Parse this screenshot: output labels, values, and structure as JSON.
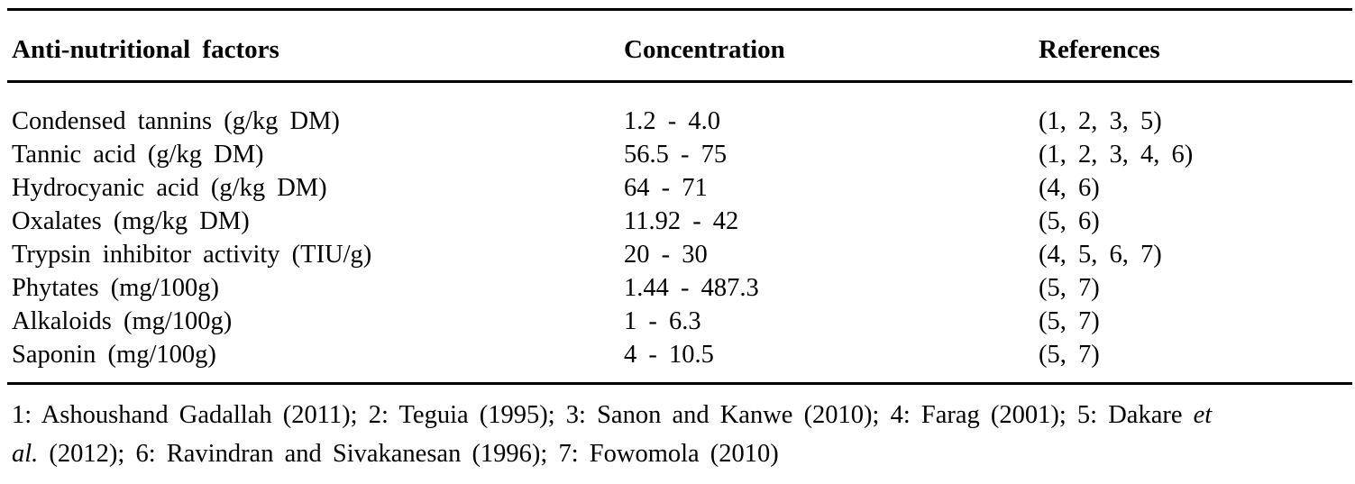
{
  "table": {
    "columns": [
      "Anti-nutritional factors",
      "Concentration",
      "References"
    ],
    "rows": [
      {
        "factor": "Condensed tannins (g/kg DM)",
        "concentration": "1.2 - 4.0",
        "references": "(1, 2, 3, 5)"
      },
      {
        "factor": "Tannic acid (g/kg DM)",
        "concentration": "56.5 - 75",
        "references": "(1, 2, 3, 4, 6)"
      },
      {
        "factor": "Hydrocyanic acid (g/kg DM)",
        "concentration": "64 - 71",
        "references": "(4, 6)"
      },
      {
        "factor": "Oxalates (mg/kg DM)",
        "concentration": "11.92 - 42",
        "references": "(5, 6)"
      },
      {
        "factor": "Trypsin inhibitor activity (TIU/g)",
        "concentration": "20 - 30",
        "references": "(4, 5, 6, 7)"
      },
      {
        "factor": "Phytates (mg/100g)",
        "concentration": "1.44 - 487.3",
        "references": "(5, 7)"
      },
      {
        "factor": "Alkaloids (mg/100g)",
        "concentration": "1 - 6.3",
        "references": "(5, 7)"
      },
      {
        "factor": "Saponin (mg/100g)",
        "concentration": "4 - 10.5",
        "references": "(5, 7)"
      }
    ]
  },
  "footnote": {
    "line1_text": "1: Ashoushand Gadallah (2011); 2: Teguia (1995); 3: Sanon and Kanwe (2010); 4: Farag (2001); 5: Dakare",
    "line1_italic": "et",
    "line2_italic": "al.",
    "line2_text": "(2012); 6: Ravindran and Sivakanesan (1996); 7: Fowomola (2010)"
  },
  "colors": {
    "text": "#000000",
    "background": "#ffffff",
    "rule": "#000000"
  }
}
